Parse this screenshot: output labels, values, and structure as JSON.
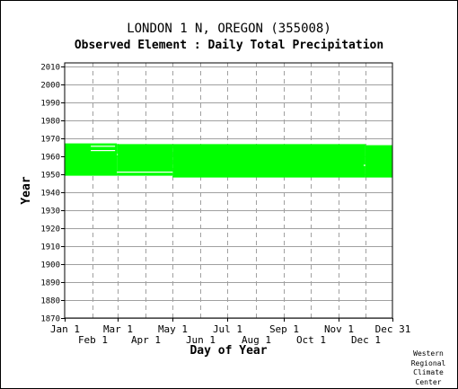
{
  "header": {
    "station": "LONDON 1 N, OREGON   (355008)",
    "element": "Observed Element : Daily Total Precipitation"
  },
  "chart_data": {
    "type": "bar",
    "xlabel": "Day of Year",
    "ylabel": "Year",
    "xlim": [
      1,
      365
    ],
    "ylim": [
      1870,
      2012
    ],
    "yticks": [
      1870,
      1880,
      1890,
      1900,
      1910,
      1920,
      1930,
      1940,
      1950,
      1960,
      1970,
      1980,
      1990,
      2000,
      2010
    ],
    "xticks": [
      {
        "label": "Jan 1",
        "day": 1,
        "row": 1
      },
      {
        "label": "Feb 1",
        "day": 32,
        "row": 2
      },
      {
        "label": "Mar 1",
        "day": 60,
        "row": 1
      },
      {
        "label": "Apr 1",
        "day": 91,
        "row": 2
      },
      {
        "label": "May 1",
        "day": 121,
        "row": 1
      },
      {
        "label": "Jun 1",
        "day": 152,
        "row": 2
      },
      {
        "label": "Jul 1",
        "day": 182,
        "row": 1
      },
      {
        "label": "Aug 1",
        "day": 213,
        "row": 2
      },
      {
        "label": "Sep 1",
        "day": 244,
        "row": 1
      },
      {
        "label": "Oct 1",
        "day": 274,
        "row": 2
      },
      {
        "label": "Nov 1",
        "day": 305,
        "row": 1
      },
      {
        "label": "Dec 1",
        "day": 335,
        "row": 2
      },
      {
        "label": "Dec 31",
        "day": 365,
        "row": 1
      }
    ],
    "grid": true,
    "color": "#00ff00",
    "coverage": [
      {
        "start_day": 1,
        "end_day": 59,
        "start_year": 1949.2,
        "end_year": 1967.2
      },
      {
        "start_day": 59,
        "end_day": 121,
        "start_year": 1949.2,
        "end_year": 1966.8
      },
      {
        "start_day": 121,
        "end_day": 335,
        "start_year": 1948.2,
        "end_year": 1966.8
      },
      {
        "start_day": 335,
        "end_day": 365,
        "start_year": 1948.2,
        "end_year": 1966.2
      }
    ],
    "gaps": [
      {
        "start_day": 30,
        "end_day": 57,
        "year": 1963.2
      },
      {
        "start_day": 30,
        "end_day": 57,
        "year": 1965.6
      },
      {
        "start_day": 59,
        "end_day": 121,
        "year": 1951.2
      },
      {
        "start_day": 59,
        "end_day": 60,
        "year": 1961.0
      },
      {
        "start_day": 333,
        "end_day": 335,
        "year": 1955.0
      }
    ]
  },
  "footer": {
    "credit": "Western\nRegional\nClimate\nCenter"
  }
}
